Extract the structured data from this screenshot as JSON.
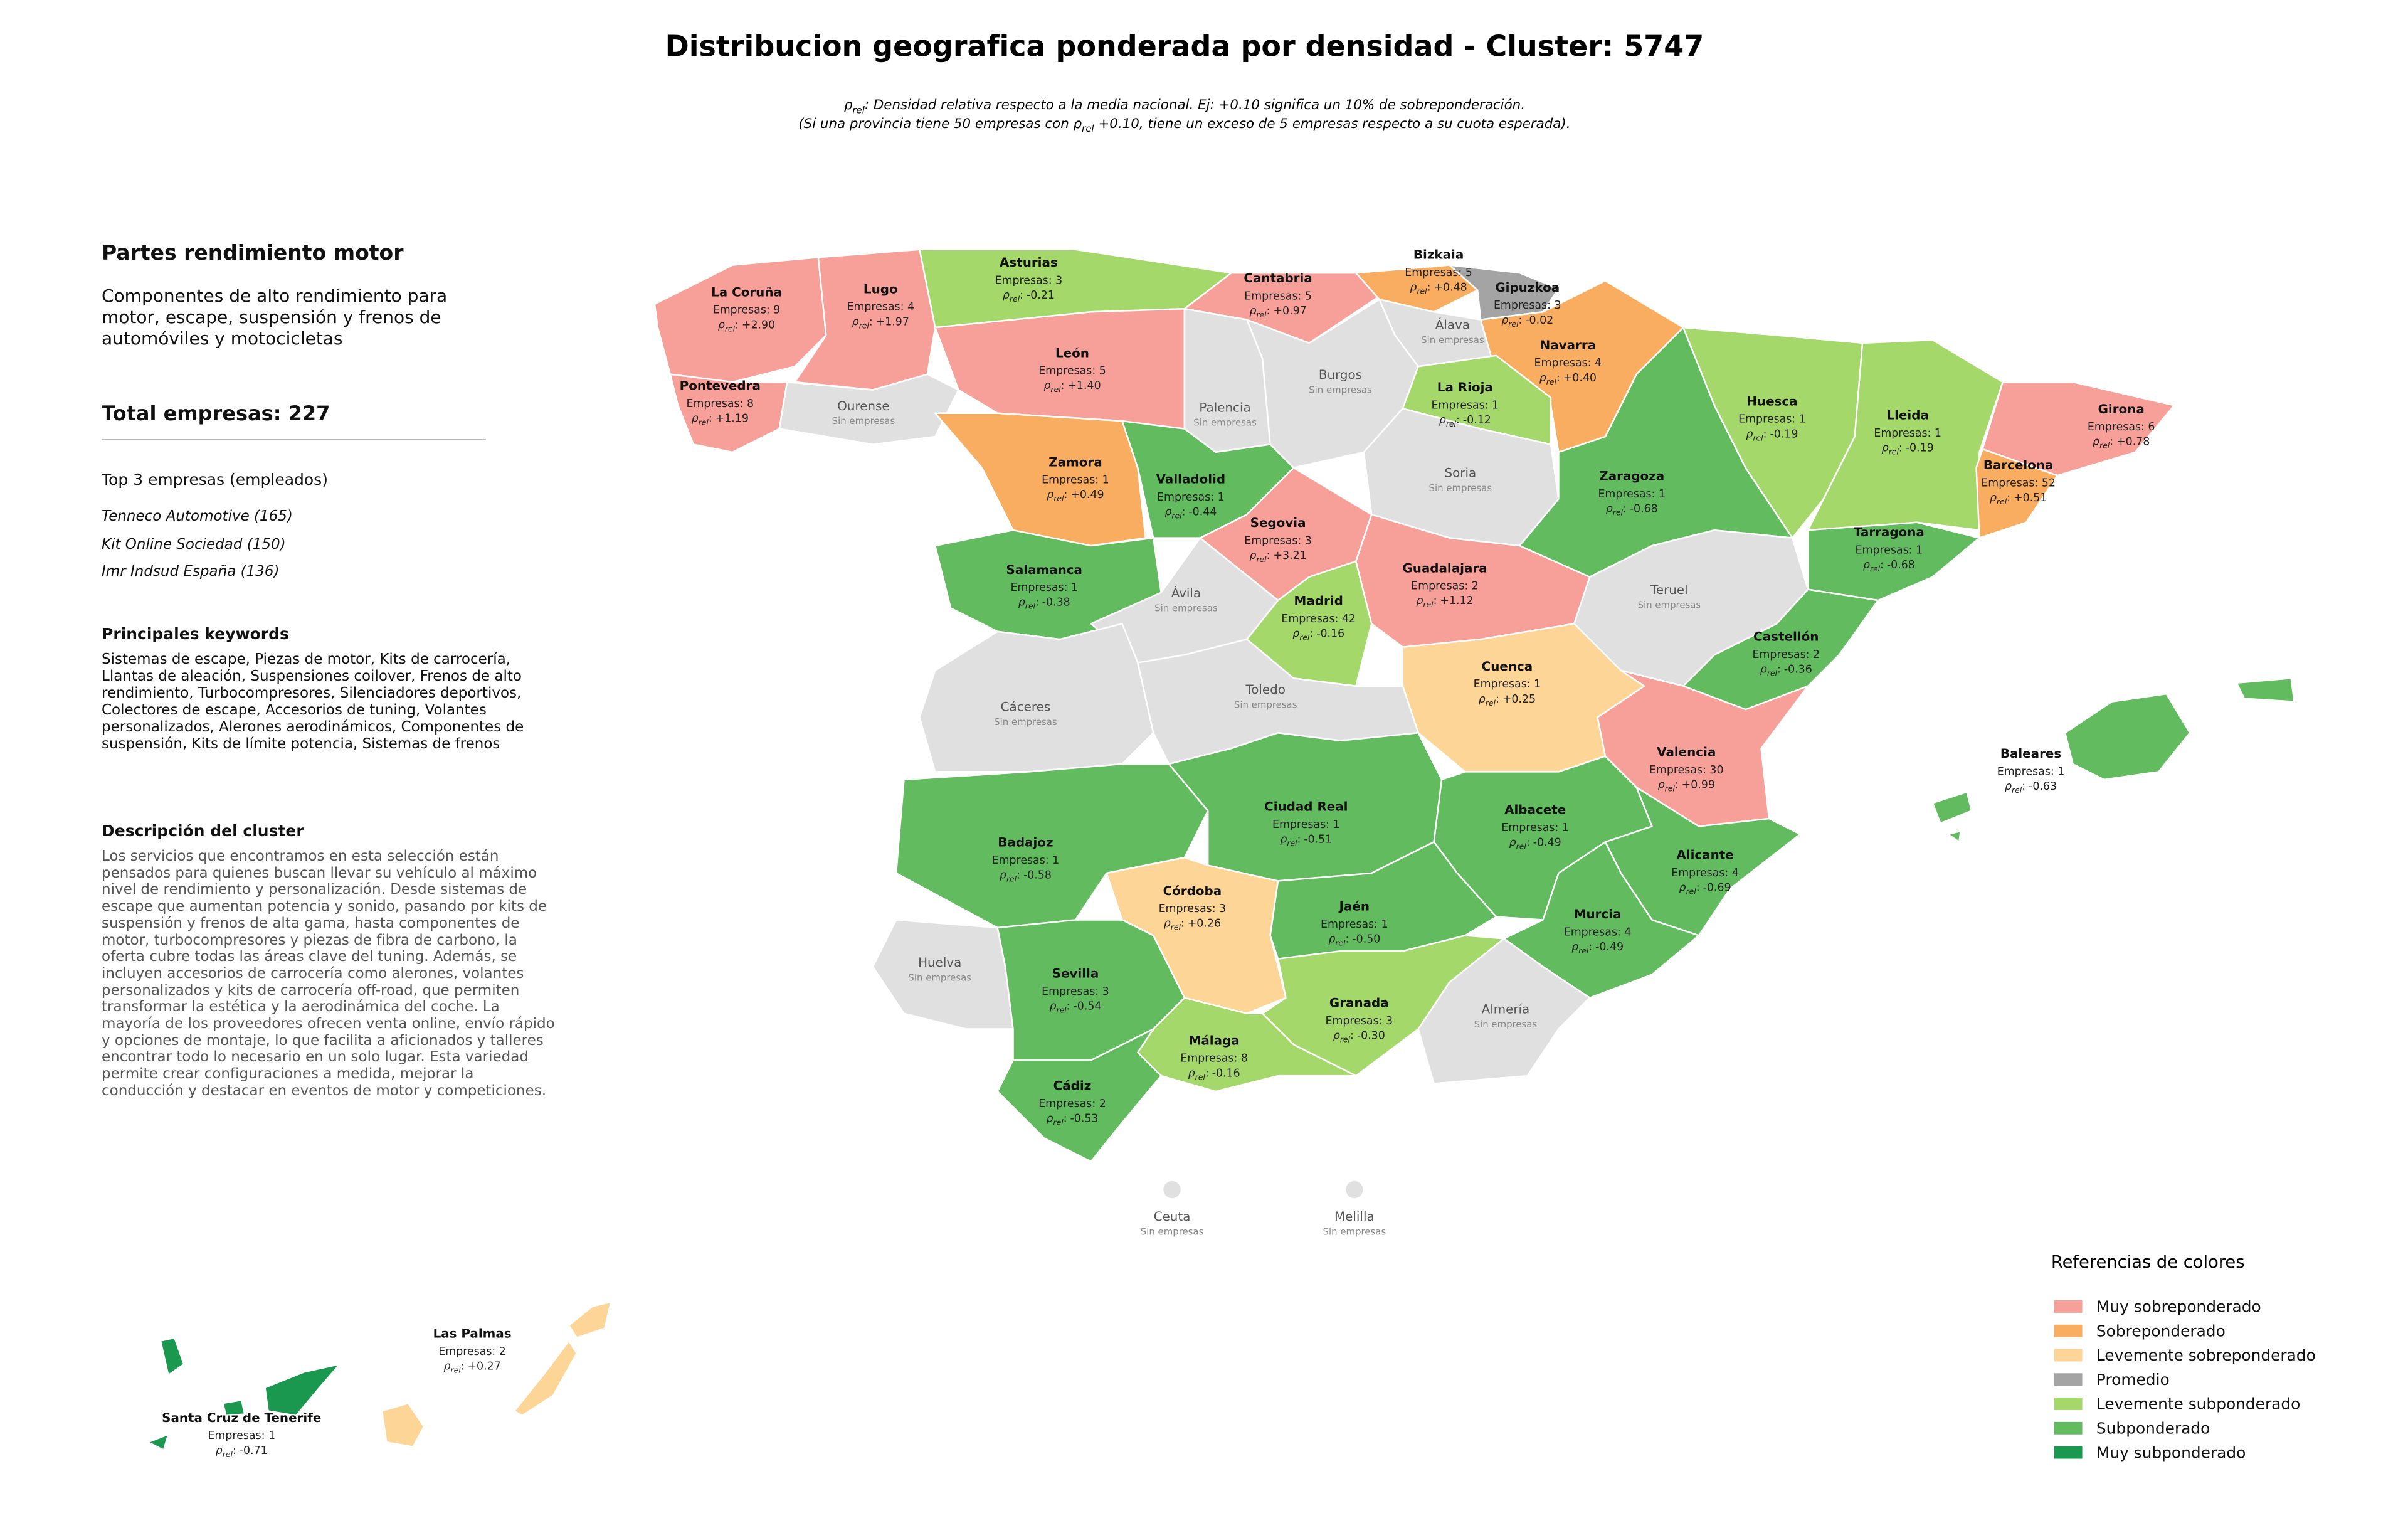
{
  "title": "Distribucion geografica ponderada por densidad - Cluster: 5747",
  "subtitle": [
    [
      {
        "text": "ρ"
      },
      {
        "sub": "rel"
      },
      {
        "text": ": Densidad relativa respecto a la media nacional. Ej: +0.10 significa un 10% de sobreponderación."
      }
    ],
    [
      {
        "text": "(Si una provincia tiene 50 empresas con ρ"
      },
      {
        "sub": "rel"
      },
      {
        "text": " +0.10, tiene un exceso de 5 empresas respecto a su cuota esperada)."
      }
    ]
  ],
  "density_label": {
    "symbol": "ρ",
    "subscript": "rel",
    "suffix": ":"
  },
  "sidebar": {
    "heading": "Partes rendimiento motor",
    "summary": "Componentes de alto rendimiento para motor, escape, suspensión y frenos de automóviles y motocicletas",
    "total": "Total empresas: 227",
    "top_title": "Top 3 empresas (empleados)",
    "top": [
      "Tenneco Automotive (165)",
      "Kit Online Sociedad (150)",
      "Imr Indsud España (136)"
    ],
    "keywords_title": "Principales keywords",
    "keywords": "Sistemas de escape, Piezas de motor, Kits de carrocería, Llantas de aleación, Suspensiones coilover, Frenos de alto rendimiento, Turbocompresores, Silenciadores deportivos, Colectores de escape, Accesorios de tuning, Volantes personalizados, Alerones aerodinámicos, Componentes de suspensión, Kits de límite potencia, Sistemas de frenos",
    "description_title": "Descripción del cluster",
    "description": "Los servicios que encontramos en esta selección están pensados para quienes buscan llevar su vehículo al máximo nivel de rendimiento y personalización. Desde sistemas de escape que aumentan potencia y sonido, pasando por kits de suspensión y frenos de alta gama, hasta componentes de motor, turbocompresores y piezas de fibra de carbono, la oferta cubre todas las áreas clave del tuning. Además, se incluyen accesorios de carrocería como alerones, volantes personalizados y kits de carrocería off-road, que permiten transformar la estética y la aerodinámica del coche. La mayoría de los proveedores ofrecen venta online, envío rápido y opciones de montaje, lo que facilita a aficionados y talleres encontrar todo lo necesario en un solo lugar. Esta variedad permite crear configuraciones a medida, mejorar la conducción y destacar en eventos de motor y competiciones."
  },
  "legend": {
    "title": "Referencias de colores",
    "items": [
      {
        "name": "Muy sobreponderado",
        "color": "#f7a099"
      },
      {
        "name": "Sobreponderado",
        "color": "#f9ad61"
      },
      {
        "name": "Levemente sobreponderado",
        "color": "#fdd597"
      },
      {
        "name": "Promedio",
        "color": "#a4a4a4"
      },
      {
        "name": "Levemente subponderado",
        "color": "#a5d86a"
      },
      {
        "name": "Subponderado",
        "color": "#63bb60"
      },
      {
        "name": "Muy subponderado",
        "color": "#1a9850"
      }
    ]
  },
  "provinces": [
    {
      "name": "La Coruña",
      "companies": "Empresas: 9",
      "density": "+2.90",
      "color": "#f7a099"
    },
    {
      "name": "Lugo",
      "companies": "Empresas: 4",
      "density": "+1.97",
      "color": "#f7a099"
    },
    {
      "name": "Pontevedra",
      "companies": "Empresas: 8",
      "density": "+1.19",
      "color": "#f7a099"
    },
    {
      "name": "Ourense",
      "status": "Sin empresas",
      "color": "#e0e0e0"
    },
    {
      "name": "Asturias",
      "companies": "Empresas: 3",
      "density": "-0.21",
      "color": "#a5d86a"
    },
    {
      "name": "Cantabria",
      "companies": "Empresas: 5",
      "density": "+0.97",
      "color": "#f7a099"
    },
    {
      "name": "Bizkaia",
      "companies": "Empresas: 5",
      "density": "+0.48",
      "color": "#f9ad61"
    },
    {
      "name": "Gipuzkoa",
      "companies": "Empresas: 3",
      "density": "-0.02",
      "color": "#a4a4a4"
    },
    {
      "name": "Álava",
      "status": "Sin empresas",
      "color": "#e0e0e0"
    },
    {
      "name": "Navarra",
      "companies": "Empresas: 4",
      "density": "+0.40",
      "color": "#f9ad61"
    },
    {
      "name": "León",
      "companies": "Empresas: 5",
      "density": "+1.40",
      "color": "#f7a099"
    },
    {
      "name": "Palencia",
      "status": "Sin empresas",
      "color": "#e0e0e0"
    },
    {
      "name": "Burgos",
      "status": "Sin empresas",
      "color": "#e0e0e0"
    },
    {
      "name": "La Rioja",
      "companies": "Empresas: 1",
      "density": "-0.12",
      "color": "#a5d86a"
    },
    {
      "name": "Zamora",
      "companies": "Empresas: 1",
      "density": "+0.49",
      "color": "#f9ad61"
    },
    {
      "name": "Valladolid",
      "companies": "Empresas: 1",
      "density": "-0.44",
      "color": "#63bb60"
    },
    {
      "name": "Soria",
      "status": "Sin empresas",
      "color": "#e0e0e0"
    },
    {
      "name": "Segovia",
      "companies": "Empresas: 3",
      "density": "+3.21",
      "color": "#f7a099"
    },
    {
      "name": "Salamanca",
      "companies": "Empresas: 1",
      "density": "-0.38",
      "color": "#63bb60"
    },
    {
      "name": "Ávila",
      "status": "Sin empresas",
      "color": "#e0e0e0"
    },
    {
      "name": "Madrid",
      "companies": "Empresas: 42",
      "density": "-0.16",
      "color": "#a5d86a"
    },
    {
      "name": "Guadalajara",
      "companies": "Empresas: 2",
      "density": "+1.12",
      "color": "#f7a099"
    },
    {
      "name": "Zaragoza",
      "companies": "Empresas: 1",
      "density": "-0.68",
      "color": "#63bb60"
    },
    {
      "name": "Huesca",
      "companies": "Empresas: 1",
      "density": "-0.19",
      "color": "#a5d86a"
    },
    {
      "name": "Lleida",
      "companies": "Empresas: 1",
      "density": "-0.19",
      "color": "#a5d86a"
    },
    {
      "name": "Girona",
      "companies": "Empresas: 6",
      "density": "+0.78",
      "color": "#f7a099"
    },
    {
      "name": "Barcelona",
      "companies": "Empresas: 52",
      "density": "+0.51",
      "color": "#f9ad61"
    },
    {
      "name": "Tarragona",
      "companies": "Empresas: 1",
      "density": "-0.68",
      "color": "#63bb60"
    },
    {
      "name": "Teruel",
      "status": "Sin empresas",
      "color": "#e0e0e0"
    },
    {
      "name": "Castellón",
      "companies": "Empresas: 2",
      "density": "-0.36",
      "color": "#63bb60"
    },
    {
      "name": "Cuenca",
      "companies": "Empresas: 1",
      "density": "+0.25",
      "color": "#fdd597"
    },
    {
      "name": "Valencia",
      "companies": "Empresas: 30",
      "density": "+0.99",
      "color": "#f7a099"
    },
    {
      "name": "Cáceres",
      "status": "Sin empresas",
      "color": "#e0e0e0"
    },
    {
      "name": "Toledo",
      "status": "Sin empresas",
      "color": "#e0e0e0"
    },
    {
      "name": "Badajoz",
      "companies": "Empresas: 1",
      "density": "-0.58",
      "color": "#63bb60"
    },
    {
      "name": "Ciudad Real",
      "companies": "Empresas: 1",
      "density": "-0.51",
      "color": "#63bb60"
    },
    {
      "name": "Albacete",
      "companies": "Empresas: 1",
      "density": "-0.49",
      "color": "#63bb60"
    },
    {
      "name": "Alicante",
      "companies": "Empresas: 4",
      "density": "-0.69",
      "color": "#63bb60"
    },
    {
      "name": "Murcia",
      "companies": "Empresas: 4",
      "density": "-0.49",
      "color": "#63bb60"
    },
    {
      "name": "Córdoba",
      "companies": "Empresas: 3",
      "density": "+0.26",
      "color": "#fdd597"
    },
    {
      "name": "Jaén",
      "companies": "Empresas: 1",
      "density": "-0.50",
      "color": "#63bb60"
    },
    {
      "name": "Huelva",
      "status": "Sin empresas",
      "color": "#e0e0e0"
    },
    {
      "name": "Sevilla",
      "companies": "Empresas: 3",
      "density": "-0.54",
      "color": "#63bb60"
    },
    {
      "name": "Granada",
      "companies": "Empresas: 3",
      "density": "-0.30",
      "color": "#a5d86a"
    },
    {
      "name": "Almería",
      "status": "Sin empresas",
      "color": "#e0e0e0"
    },
    {
      "name": "Málaga",
      "companies": "Empresas: 8",
      "density": "-0.16",
      "color": "#a5d86a"
    },
    {
      "name": "Cádiz",
      "companies": "Empresas: 2",
      "density": "-0.53",
      "color": "#63bb60"
    },
    {
      "name": "Baleares",
      "companies": "Empresas: 1",
      "density": "-0.63",
      "color": "#63bb60"
    },
    {
      "name": "Las Palmas",
      "companies": "Empresas: 2",
      "density": "+0.27",
      "color": "#fdd597"
    },
    {
      "name": "Santa Cruz de Tenerife",
      "companies": "Empresas: 1",
      "density": "-0.71",
      "color": "#1a9850"
    },
    {
      "name": "Ceuta",
      "status": "Sin empresas",
      "color": "#e0e0e0"
    },
    {
      "name": "Melilla",
      "status": "Sin empresas",
      "color": "#e0e0e0"
    }
  ]
}
